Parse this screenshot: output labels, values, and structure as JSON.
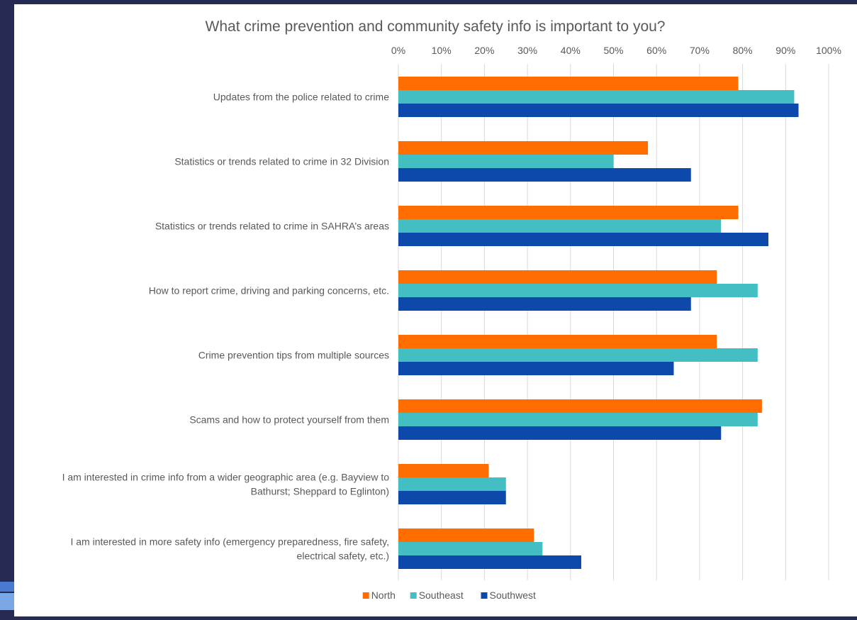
{
  "colors": {
    "frame": "#262b53",
    "grid": "#d9d9d9",
    "text": "#595959"
  },
  "chart_data": {
    "type": "bar",
    "orientation": "horizontal",
    "title": "What crime prevention and community safety info is important to you?",
    "xlabel": "",
    "ylabel": "",
    "xlim": [
      0,
      100
    ],
    "x_ticks": [
      "0%",
      "10%",
      "20%",
      "30%",
      "40%",
      "50%",
      "60%",
      "70%",
      "80%",
      "90%",
      "100%"
    ],
    "axis_position": "top",
    "grid": true,
    "legend_position": "bottom",
    "categories": [
      [
        "Updates from the police related to crime"
      ],
      [
        "Statistics or trends related to crime in 32 Division"
      ],
      [
        "Statistics or trends related to crime in SAHRA’s areas"
      ],
      [
        "How to report crime, driving and parking concerns, etc."
      ],
      [
        "Crime prevention tips from multiple sources"
      ],
      [
        "Scams and how to protect yourself from them"
      ],
      [
        "I am interested in crime info from a wider geographic area (e.g. Bayview to",
        "Bathurst; Sheppard to Eglinton)"
      ],
      [
        "I am interested in more safety info (emergency preparedness, fire safety,",
        "electrical safety, etc.)"
      ]
    ],
    "series": [
      {
        "name": "North",
        "color": "#ff6d00",
        "values": [
          79,
          58,
          79,
          74,
          74,
          84.5,
          21,
          31.5
        ]
      },
      {
        "name": "Southeast",
        "color": "#43bfc4",
        "values": [
          92,
          50,
          75,
          83.5,
          83.5,
          83.5,
          25,
          33.5
        ]
      },
      {
        "name": "Southwest",
        "color": "#0c49ab",
        "values": [
          93,
          68,
          86,
          68,
          64,
          75,
          25,
          42.5
        ]
      }
    ]
  }
}
